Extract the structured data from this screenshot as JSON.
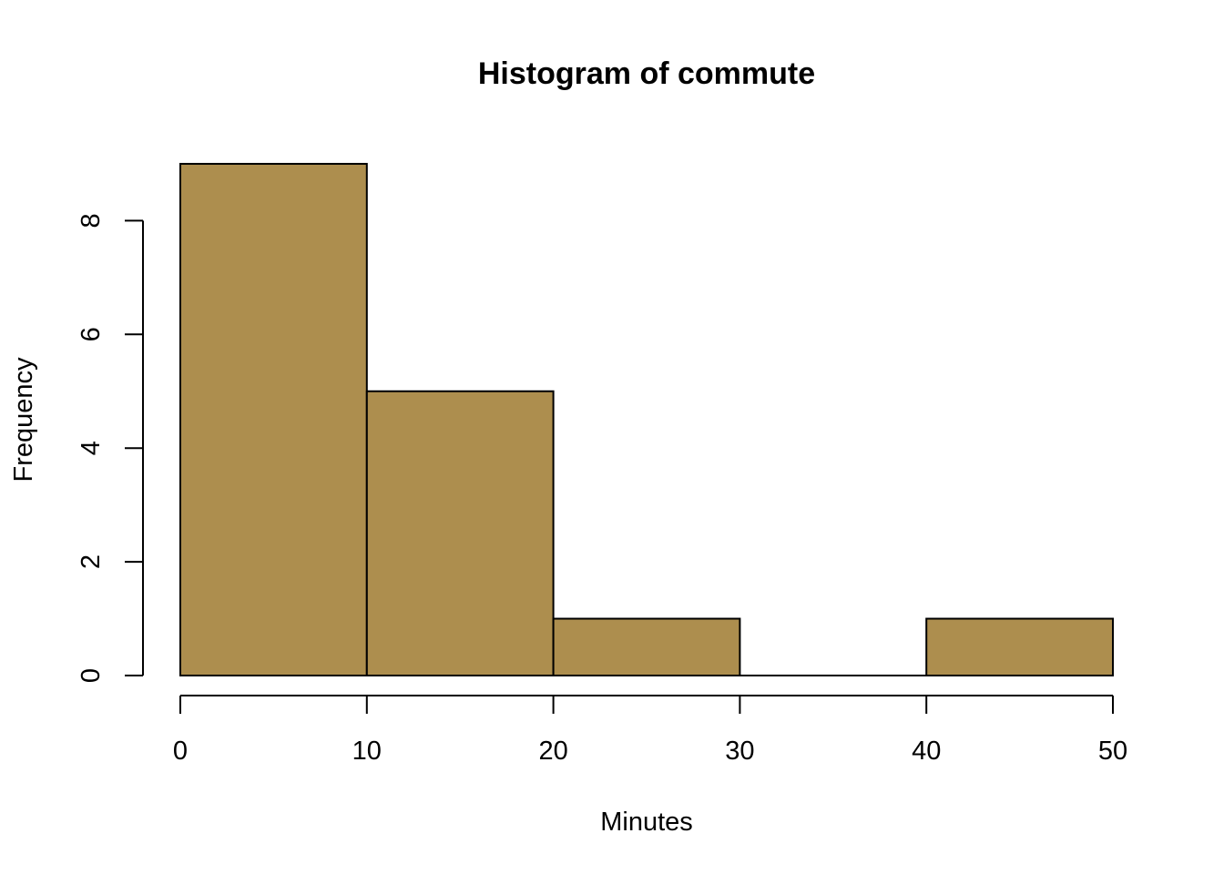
{
  "chart_data": {
    "type": "bar",
    "title": "Histogram of commute",
    "xlabel": "Minutes",
    "ylabel": "Frequency",
    "bins": [
      {
        "start": 0,
        "end": 10,
        "count": 9
      },
      {
        "start": 10,
        "end": 20,
        "count": 5
      },
      {
        "start": 20,
        "end": 30,
        "count": 1
      },
      {
        "start": 30,
        "end": 40,
        "count": 0
      },
      {
        "start": 40,
        "end": 50,
        "count": 1
      }
    ],
    "xlim": [
      0,
      50
    ],
    "ylim": [
      0,
      9
    ],
    "x_ticks": [
      0,
      10,
      20,
      30,
      40,
      50
    ],
    "y_ticks": [
      0,
      2,
      4,
      6,
      8
    ],
    "bar_color": "#ad8e4e",
    "grid": false
  }
}
